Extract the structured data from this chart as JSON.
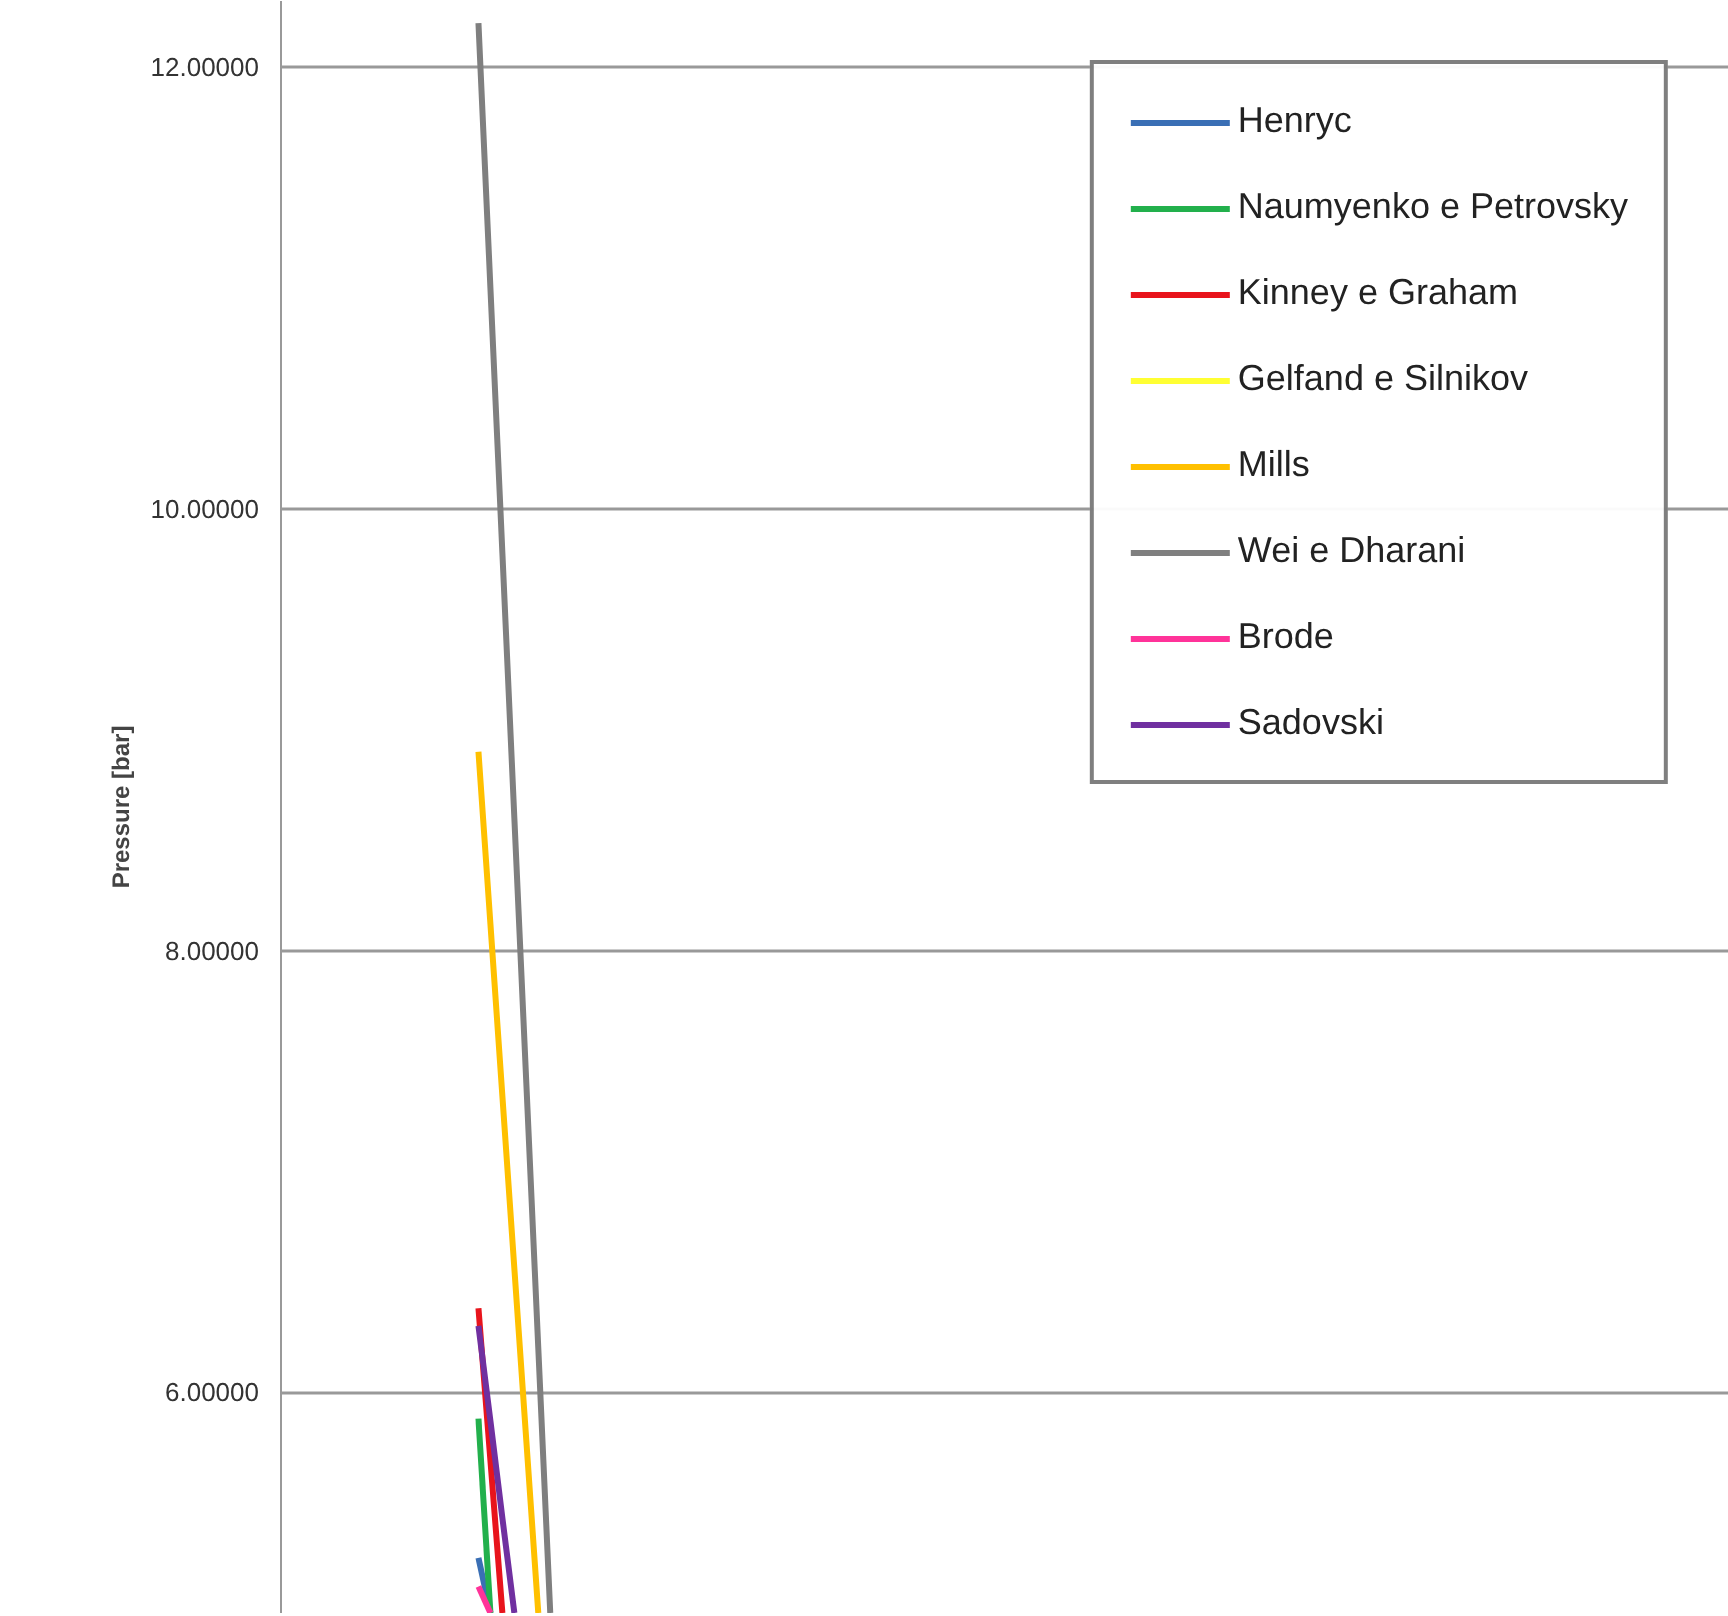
{
  "chart_data": {
    "type": "line",
    "ylabel": "Pressure [bar]",
    "ylim": [
      5.0,
      12.3
    ],
    "categories": [
      null,
      null,
      null,
      null,
      null,
      null,
      null,
      null,
      null,
      null,
      null,
      null,
      null,
      null,
      null,
      null,
      null,
      null,
      null,
      null,
      null,
      null,
      null,
      null,
      null,
      null,
      null,
      null,
      null,
      null,
      null,
      null,
      null,
      null,
      null,
      null,
      null,
      null,
      null,
      null,
      null,
      null,
      null,
      null,
      null,
      null,
      null,
      null,
      null,
      null,
      null,
      null,
      null,
      null,
      null,
      null,
      null,
      null,
      null,
      null,
      null,
      null,
      null,
      null,
      null,
      null,
      null,
      null,
      null,
      null,
      null,
      null,
      null,
      null,
      null,
      null,
      null,
      null,
      null,
      null,
      null,
      null,
      null,
      null,
      null,
      null,
      null,
      null,
      null,
      null,
      null,
      null,
      null,
      null,
      null,
      null,
      null,
      null,
      null,
      null,
      null,
      null,
      null,
      null,
      null,
      null,
      null,
      null,
      null,
      null,
      null,
      null,
      null,
      null,
      null,
      null,
      null,
      null,
      null,
      null,
      null
    ],
    "yticks": [
      {
        "value": 6,
        "label": "6.00000"
      },
      {
        "value": 8,
        "label": "8.00000"
      },
      {
        "value": 10,
        "label": "10.00000"
      },
      {
        "value": 12,
        "label": "12.00000"
      }
    ],
    "tick_labels": "y",
    "grid": "y",
    "legend": "top right",
    "line_style": "solid",
    "marker": "none",
    "series": [
      {
        "name": "Henryc",
        "color": "#3a6fb5",
        "values": [
          null,
          null,
          null,
          null,
          null,
          null,
          null,
          null,
          null,
          null,
          null,
          null,
          null,
          null,
          null,
          null,
          5.25,
          5.0,
          null,
          null,
          null,
          null,
          null,
          null,
          null,
          null,
          null,
          null,
          null,
          null,
          null,
          null,
          null,
          null,
          null,
          null,
          null,
          null,
          null,
          null,
          null,
          null,
          null,
          null,
          null,
          null,
          null,
          null,
          null,
          null,
          null,
          null,
          null,
          null,
          null,
          null,
          null,
          null,
          null,
          null,
          null,
          null,
          null,
          null,
          null,
          null,
          null,
          null,
          null,
          null,
          null,
          null,
          null,
          null,
          null,
          null,
          null,
          null,
          null,
          null,
          null,
          null,
          null,
          null,
          null,
          null,
          null,
          null,
          null,
          null,
          null,
          null,
          null,
          null,
          null,
          null,
          null,
          null,
          null,
          null,
          null,
          null,
          null,
          null,
          null,
          null,
          null,
          null,
          null,
          null,
          null,
          null,
          null,
          null,
          null,
          null,
          null,
          null,
          null,
          null,
          null
        ]
      },
      {
        "name": "Naumyenko e Petrovsky",
        "color": "#22b04c",
        "values": [
          null,
          null,
          null,
          null,
          null,
          null,
          null,
          null,
          null,
          null,
          null,
          null,
          null,
          null,
          null,
          null,
          5.88,
          5.0,
          null,
          null,
          null,
          null,
          null,
          null,
          null,
          null,
          null,
          null,
          null,
          null,
          null,
          null,
          null,
          null,
          null,
          null,
          null,
          null,
          null,
          null,
          null,
          null,
          null,
          null,
          null,
          null,
          null,
          null,
          null,
          null,
          null,
          null,
          null,
          null,
          null,
          null,
          null,
          null,
          null,
          null,
          null,
          null,
          null,
          null,
          null,
          null,
          null,
          null,
          null,
          null,
          null,
          null,
          null,
          null,
          null,
          null,
          null,
          null,
          null,
          null,
          null,
          null,
          null,
          null,
          null,
          null,
          null,
          null,
          null,
          null,
          null,
          null,
          null,
          null,
          null,
          null,
          null,
          null,
          null,
          null,
          null,
          null,
          null,
          null,
          null,
          null,
          null,
          null,
          null,
          null,
          null,
          null,
          null,
          null,
          null,
          null,
          null,
          null,
          null,
          null,
          null
        ]
      },
      {
        "name": "Kinney e Graham",
        "color": "#e8141c",
        "values": [
          null,
          null,
          null,
          null,
          null,
          null,
          null,
          null,
          null,
          null,
          null,
          null,
          null,
          null,
          null,
          null,
          6.38,
          5.69,
          5.0,
          null,
          null,
          null,
          null,
          null,
          null,
          null,
          null,
          null,
          null,
          null,
          null,
          null,
          null,
          null,
          null,
          null,
          null,
          null,
          null,
          null,
          null,
          null,
          null,
          null,
          null,
          null,
          null,
          null,
          null,
          null,
          null,
          null,
          null,
          null,
          null,
          null,
          null,
          null,
          null,
          null,
          null,
          null,
          null,
          null,
          null,
          null,
          null,
          null,
          null,
          null,
          null,
          null,
          null,
          null,
          null,
          null,
          null,
          null,
          null,
          null,
          null,
          null,
          null,
          null,
          null,
          null,
          null,
          null,
          null,
          null,
          null,
          null,
          null,
          null,
          null,
          null,
          null,
          null,
          null,
          null,
          null,
          null,
          null,
          null,
          null,
          null,
          null,
          null,
          null,
          null,
          null,
          null,
          null,
          null,
          null,
          null,
          null,
          null,
          null,
          null,
          null
        ]
      },
      {
        "name": "Gelfand e Silnikov",
        "color": "#ffff33",
        "values": [
          null,
          null,
          null,
          null,
          null,
          null,
          null,
          null,
          null,
          null,
          null,
          null,
          null,
          null,
          null,
          null,
          null,
          null,
          null,
          null,
          null,
          null,
          null,
          null,
          null,
          null,
          null,
          null,
          null,
          null,
          null,
          null,
          null,
          null,
          null,
          null,
          null,
          null,
          null,
          null,
          null,
          null,
          null,
          null,
          null,
          null,
          null,
          null,
          null,
          null,
          null,
          null,
          null,
          null,
          null,
          null,
          null,
          null,
          null,
          null,
          null,
          null,
          null,
          null,
          null,
          null,
          null,
          null,
          null,
          null,
          null,
          null,
          null,
          null,
          null,
          null,
          null,
          null,
          null,
          null,
          null,
          null,
          null,
          null,
          null,
          null,
          null,
          null,
          null,
          null,
          null,
          null,
          null,
          null,
          null,
          null,
          null,
          null,
          null,
          null,
          null,
          null,
          null,
          null,
          null,
          null,
          null,
          null,
          null,
          null,
          null,
          null,
          null,
          null,
          null,
          null,
          null,
          null,
          null,
          null,
          null
        ]
      },
      {
        "name": "Mills",
        "color": "#ffc000",
        "values": [
          null,
          null,
          null,
          null,
          null,
          null,
          null,
          null,
          null,
          null,
          null,
          null,
          null,
          null,
          null,
          null,
          8.9,
          8.12,
          7.34,
          6.56,
          5.78,
          5.0,
          null,
          null,
          null,
          null,
          null,
          null,
          null,
          null,
          null,
          null,
          null,
          null,
          null,
          null,
          null,
          null,
          null,
          null,
          null,
          null,
          null,
          null,
          null,
          null,
          null,
          null,
          null,
          null,
          null,
          null,
          null,
          null,
          null,
          null,
          null,
          null,
          null,
          null,
          null,
          null,
          null,
          null,
          null,
          null,
          null,
          null,
          null,
          null,
          null,
          null,
          null,
          null,
          null,
          null,
          null,
          null,
          null,
          null,
          null,
          null,
          null,
          null,
          null,
          null,
          null,
          null,
          null,
          null,
          null,
          null,
          null,
          null,
          null,
          null,
          null,
          null,
          null,
          null,
          null,
          null,
          null,
          null,
          null,
          null,
          null,
          null,
          null,
          null,
          null,
          null,
          null,
          null,
          null,
          null,
          null,
          null,
          null,
          null,
          null
        ]
      },
      {
        "name": "Wei e Dharani",
        "color": "#7f7f7f",
        "values": [
          null,
          null,
          null,
          null,
          null,
          null,
          null,
          null,
          null,
          null,
          null,
          null,
          null,
          null,
          null,
          null,
          12.2,
          11.0,
          9.8,
          8.6,
          7.4,
          6.2,
          5.0,
          null,
          null,
          null,
          null,
          null,
          null,
          null,
          null,
          null,
          null,
          null,
          null,
          null,
          null,
          null,
          null,
          null,
          null,
          null,
          null,
          null,
          null,
          null,
          null,
          null,
          null,
          null,
          null,
          null,
          null,
          null,
          null,
          null,
          null,
          null,
          null,
          null,
          null,
          null,
          null,
          null,
          null,
          null,
          null,
          null,
          null,
          null,
          null,
          null,
          null,
          null,
          null,
          null,
          null,
          null,
          null,
          null,
          null,
          null,
          null,
          null,
          null,
          null,
          null,
          null,
          null,
          null,
          null,
          null,
          null,
          null,
          null,
          null,
          null,
          null,
          null,
          null,
          null,
          null,
          null,
          null,
          null,
          null,
          null,
          null,
          null,
          null,
          null,
          null,
          null,
          null,
          null,
          null,
          null,
          null,
          null,
          null,
          null
        ]
      },
      {
        "name": "Brode",
        "color": "#ff3399",
        "values": [
          null,
          null,
          null,
          null,
          null,
          null,
          null,
          null,
          null,
          null,
          null,
          null,
          null,
          null,
          null,
          null,
          5.12,
          5.0,
          null,
          null,
          null,
          null,
          null,
          null,
          null,
          null,
          null,
          null,
          null,
          null,
          null,
          null,
          null,
          null,
          null,
          null,
          null,
          null,
          null,
          null,
          null,
          null,
          null,
          null,
          null,
          null,
          null,
          null,
          null,
          null,
          null,
          null,
          null,
          null,
          null,
          null,
          null,
          null,
          null,
          null,
          null,
          null,
          null,
          null,
          null,
          null,
          null,
          null,
          null,
          null,
          null,
          null,
          null,
          null,
          null,
          null,
          null,
          null,
          null,
          null,
          null,
          null,
          null,
          null,
          null,
          null,
          null,
          null,
          null,
          null,
          null,
          null,
          null,
          null,
          null,
          null,
          null,
          null,
          null,
          null,
          null,
          null,
          null,
          null,
          null,
          null,
          null,
          null,
          null,
          null,
          null,
          null,
          null,
          null,
          null,
          null,
          null,
          null,
          null,
          null,
          null
        ]
      },
      {
        "name": "Sadovski",
        "color": "#7030a0",
        "values": [
          null,
          null,
          null,
          null,
          null,
          null,
          null,
          null,
          null,
          null,
          null,
          null,
          null,
          null,
          null,
          null,
          6.3,
          5.87,
          5.43,
          5.0,
          null,
          null,
          null,
          null,
          null,
          null,
          null,
          null,
          null,
          null,
          null,
          null,
          null,
          null,
          null,
          null,
          null,
          null,
          null,
          null,
          null,
          null,
          null,
          null,
          null,
          null,
          null,
          null,
          null,
          null,
          null,
          null,
          null,
          null,
          null,
          null,
          null,
          null,
          null,
          null,
          null,
          null,
          null,
          null,
          null,
          null,
          null,
          null,
          null,
          null,
          null,
          null,
          null,
          null,
          null,
          null,
          null,
          null,
          null,
          null,
          null,
          null,
          null,
          null,
          null,
          null,
          null,
          null,
          null,
          null,
          null,
          null,
          null,
          null,
          null,
          null,
          null,
          null,
          null,
          null,
          null,
          null,
          null,
          null,
          null,
          null,
          null,
          null,
          null,
          null,
          null,
          null,
          null,
          null,
          null,
          null,
          null,
          null,
          null,
          null,
          null
        ]
      }
    ]
  }
}
